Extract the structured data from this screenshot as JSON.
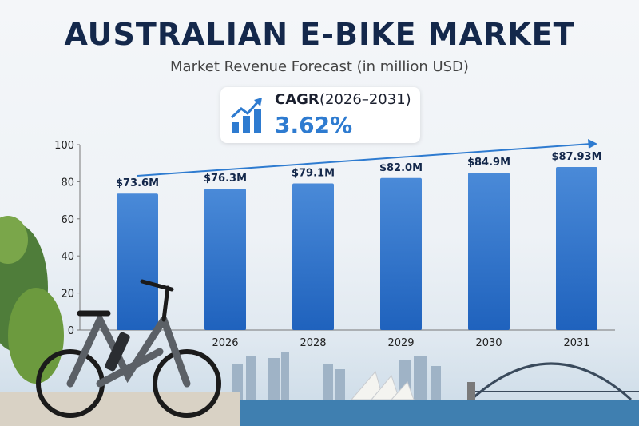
{
  "header": {
    "title": "AUSTRALIAN E-BIKE MARKET",
    "subtitle": "Market Revenue Forecast (in million USD)"
  },
  "cagr": {
    "label": "CAGR",
    "period": "(2026–2031)",
    "value": "3.62%",
    "icon": "growth-chart-icon"
  },
  "colors": {
    "bar": "#2f72c9",
    "title": "#14284b",
    "accent": "#2e7bd0"
  },
  "chart_data": {
    "type": "bar",
    "categories": [
      "",
      "2026",
      "2028",
      "2029",
      "2030",
      "2031"
    ],
    "values": [
      73.6,
      76.3,
      79.1,
      82.0,
      84.9,
      87.93
    ],
    "data_labels": [
      "$73.6M",
      "$76.3M",
      "$79.1M",
      "$82.0M",
      "$84.9M",
      "$87.93M"
    ],
    "ylim": [
      0,
      100
    ],
    "yticks": [
      0,
      20,
      40,
      60,
      80,
      100
    ],
    "grid": false,
    "trend_arrow": true
  }
}
